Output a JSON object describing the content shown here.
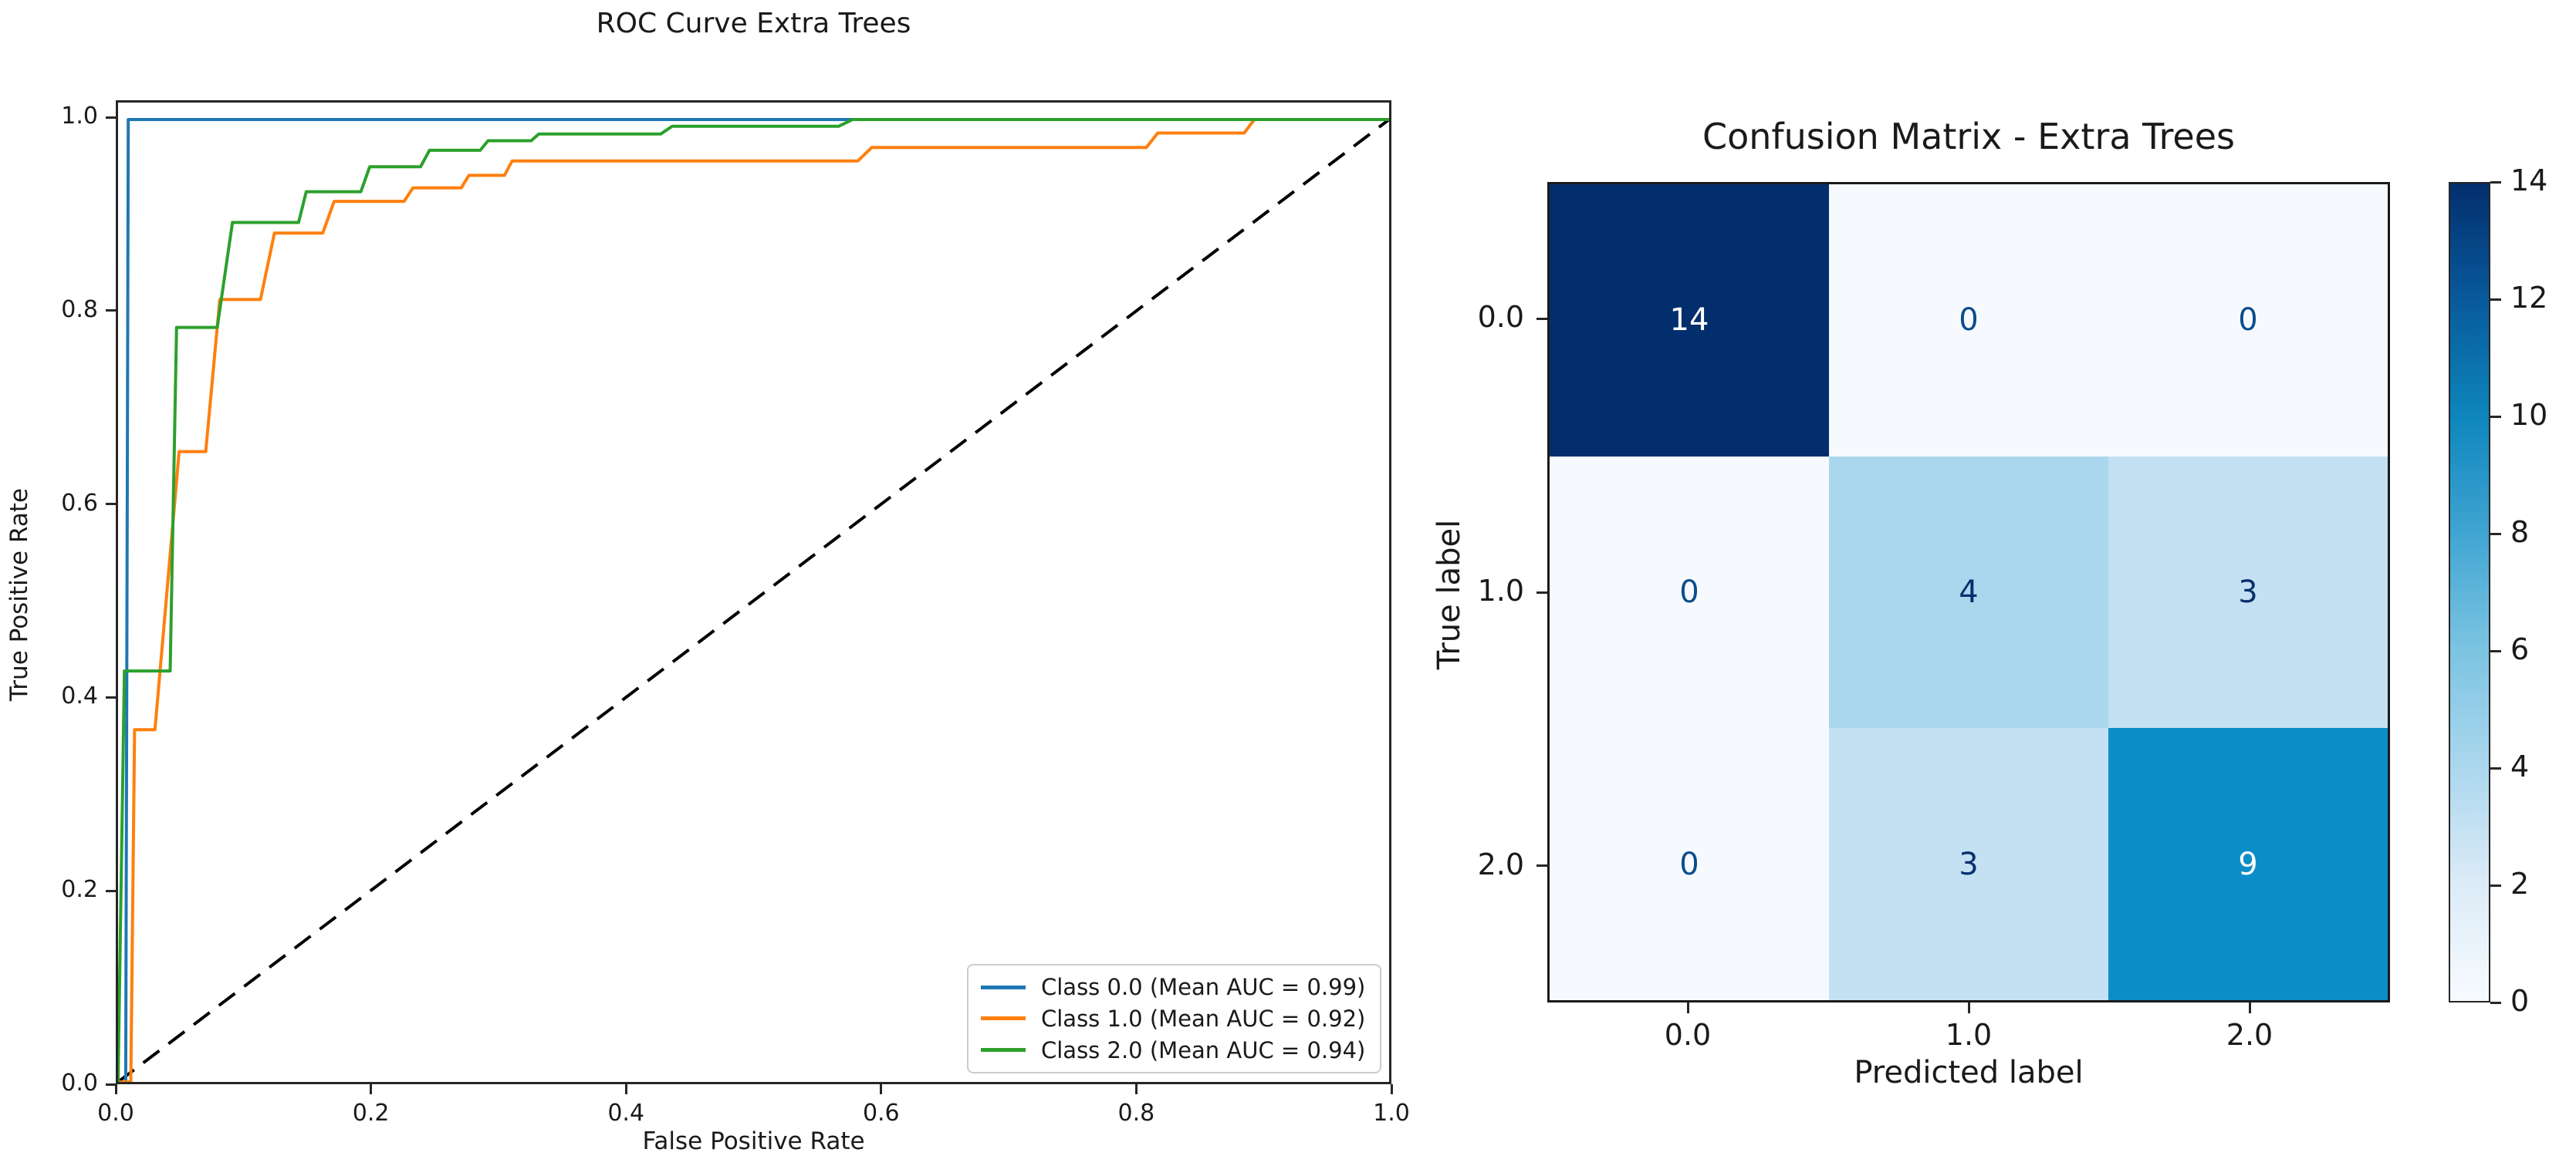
{
  "figure": {
    "background": "#ffffff"
  },
  "chart_data": [
    {
      "type": "line",
      "title": "ROC Curve Extra Trees",
      "xlabel": "False Positive Rate",
      "ylabel": "True Positive Rate",
      "xlim": [
        0.0,
        1.0
      ],
      "ylim": [
        0.0,
        1.018
      ],
      "grid": false,
      "legend_position": "lower right",
      "x_tick_values": [
        0.0,
        0.2,
        0.4,
        0.6,
        0.8,
        1.0
      ],
      "x_tick_labels": [
        "0.0",
        "0.2",
        "0.4",
        "0.6",
        "0.8",
        "1.0"
      ],
      "y_tick_values": [
        0.0,
        0.2,
        0.4,
        0.6,
        0.8,
        1.0
      ],
      "y_tick_labels": [
        "0.0",
        "0.2",
        "0.4",
        "0.6",
        "0.8",
        "1.0"
      ],
      "series": [
        {
          "name": "Class 0.0",
          "label": "Class 0.0 (Mean AUC = 0.99)",
          "mean_auc": 0.99,
          "color": "#1f77b4",
          "style": "solid",
          "points": [
            [
              0,
              0
            ],
            [
              0.006,
              0
            ],
            [
              0.008,
              1.0
            ],
            [
              1.0,
              1.0
            ]
          ]
        },
        {
          "name": "Class 1.0",
          "label": "Class 1.0 (Mean AUC = 0.92)",
          "mean_auc": 0.92,
          "color": "#ff7f0e",
          "style": "solid",
          "points": [
            [
              0,
              0
            ],
            [
              0.01,
              0
            ],
            [
              0.013,
              0.366
            ],
            [
              0.029,
              0.366
            ],
            [
              0.048,
              0.655
            ],
            [
              0.069,
              0.655
            ],
            [
              0.08,
              0.813
            ],
            [
              0.112,
              0.813
            ],
            [
              0.123,
              0.882
            ],
            [
              0.161,
              0.882
            ],
            [
              0.17,
              0.915
            ],
            [
              0.225,
              0.915
            ],
            [
              0.232,
              0.929
            ],
            [
              0.27,
              0.929
            ],
            [
              0.276,
              0.942
            ],
            [
              0.304,
              0.942
            ],
            [
              0.31,
              0.957
            ],
            [
              0.582,
              0.957
            ],
            [
              0.593,
              0.971
            ],
            [
              0.809,
              0.971
            ],
            [
              0.818,
              0.986
            ],
            [
              0.886,
              0.986
            ],
            [
              0.894,
              1.0
            ],
            [
              1.0,
              1.0
            ]
          ]
        },
        {
          "name": "Class 2.0",
          "label": "Class 2.0 (Mean AUC = 0.94)",
          "mean_auc": 0.94,
          "color": "#2ca02c",
          "style": "solid",
          "points": [
            [
              0,
              0
            ],
            [
              0.005,
              0.427
            ],
            [
              0.041,
              0.427
            ],
            [
              0.046,
              0.784
            ],
            [
              0.078,
              0.784
            ],
            [
              0.09,
              0.893
            ],
            [
              0.142,
              0.893
            ],
            [
              0.148,
              0.925
            ],
            [
              0.191,
              0.925
            ],
            [
              0.198,
              0.951
            ],
            [
              0.238,
              0.951
            ],
            [
              0.245,
              0.968
            ],
            [
              0.285,
              0.968
            ],
            [
              0.291,
              0.978
            ],
            [
              0.325,
              0.978
            ],
            [
              0.331,
              0.985
            ],
            [
              0.427,
              0.985
            ],
            [
              0.436,
              0.993
            ],
            [
              0.567,
              0.993
            ],
            [
              0.578,
              1.0
            ],
            [
              1.0,
              1.0
            ]
          ]
        }
      ],
      "reference_line": {
        "name": "chance-diagonal",
        "color": "#000000",
        "style": "dashed",
        "points": [
          [
            0,
            0
          ],
          [
            1.0,
            1.0
          ]
        ]
      }
    },
    {
      "type": "heatmap",
      "title": "Confusion Matrix - Extra Trees",
      "xlabel": "Predicted label",
      "ylabel": "True label",
      "x_labels": [
        "0.0",
        "1.0",
        "2.0"
      ],
      "y_labels": [
        "0.0",
        "1.0",
        "2.0"
      ],
      "matrix": [
        [
          14,
          0,
          0
        ],
        [
          0,
          4,
          3
        ],
        [
          0,
          3,
          9
        ]
      ],
      "vmin": 0,
      "vmax": 14,
      "colormap": "Blues",
      "cell_colors": [
        [
          "#032e6d",
          "#f6fafe",
          "#f6fafe"
        ],
        [
          "#f6fafe",
          "#abd7ee",
          "#c4e0f3"
        ],
        [
          "#f6fafe",
          "#c4e0f3",
          "#0b8ec7"
        ]
      ],
      "cell_text_colors": [
        [
          "#ffffff",
          "#0b4d8c",
          "#0b4d8c"
        ],
        [
          "#0b4d8c",
          "#08306b",
          "#08306b"
        ],
        [
          "#0b4d8c",
          "#08306b",
          "#ffffff"
        ]
      ],
      "colorbar_ticks": [
        "0",
        "2",
        "4",
        "6",
        "8",
        "10",
        "12",
        "14"
      ],
      "colorbar_tick_values": [
        0,
        2,
        4,
        6,
        8,
        10,
        12,
        14
      ]
    }
  ]
}
